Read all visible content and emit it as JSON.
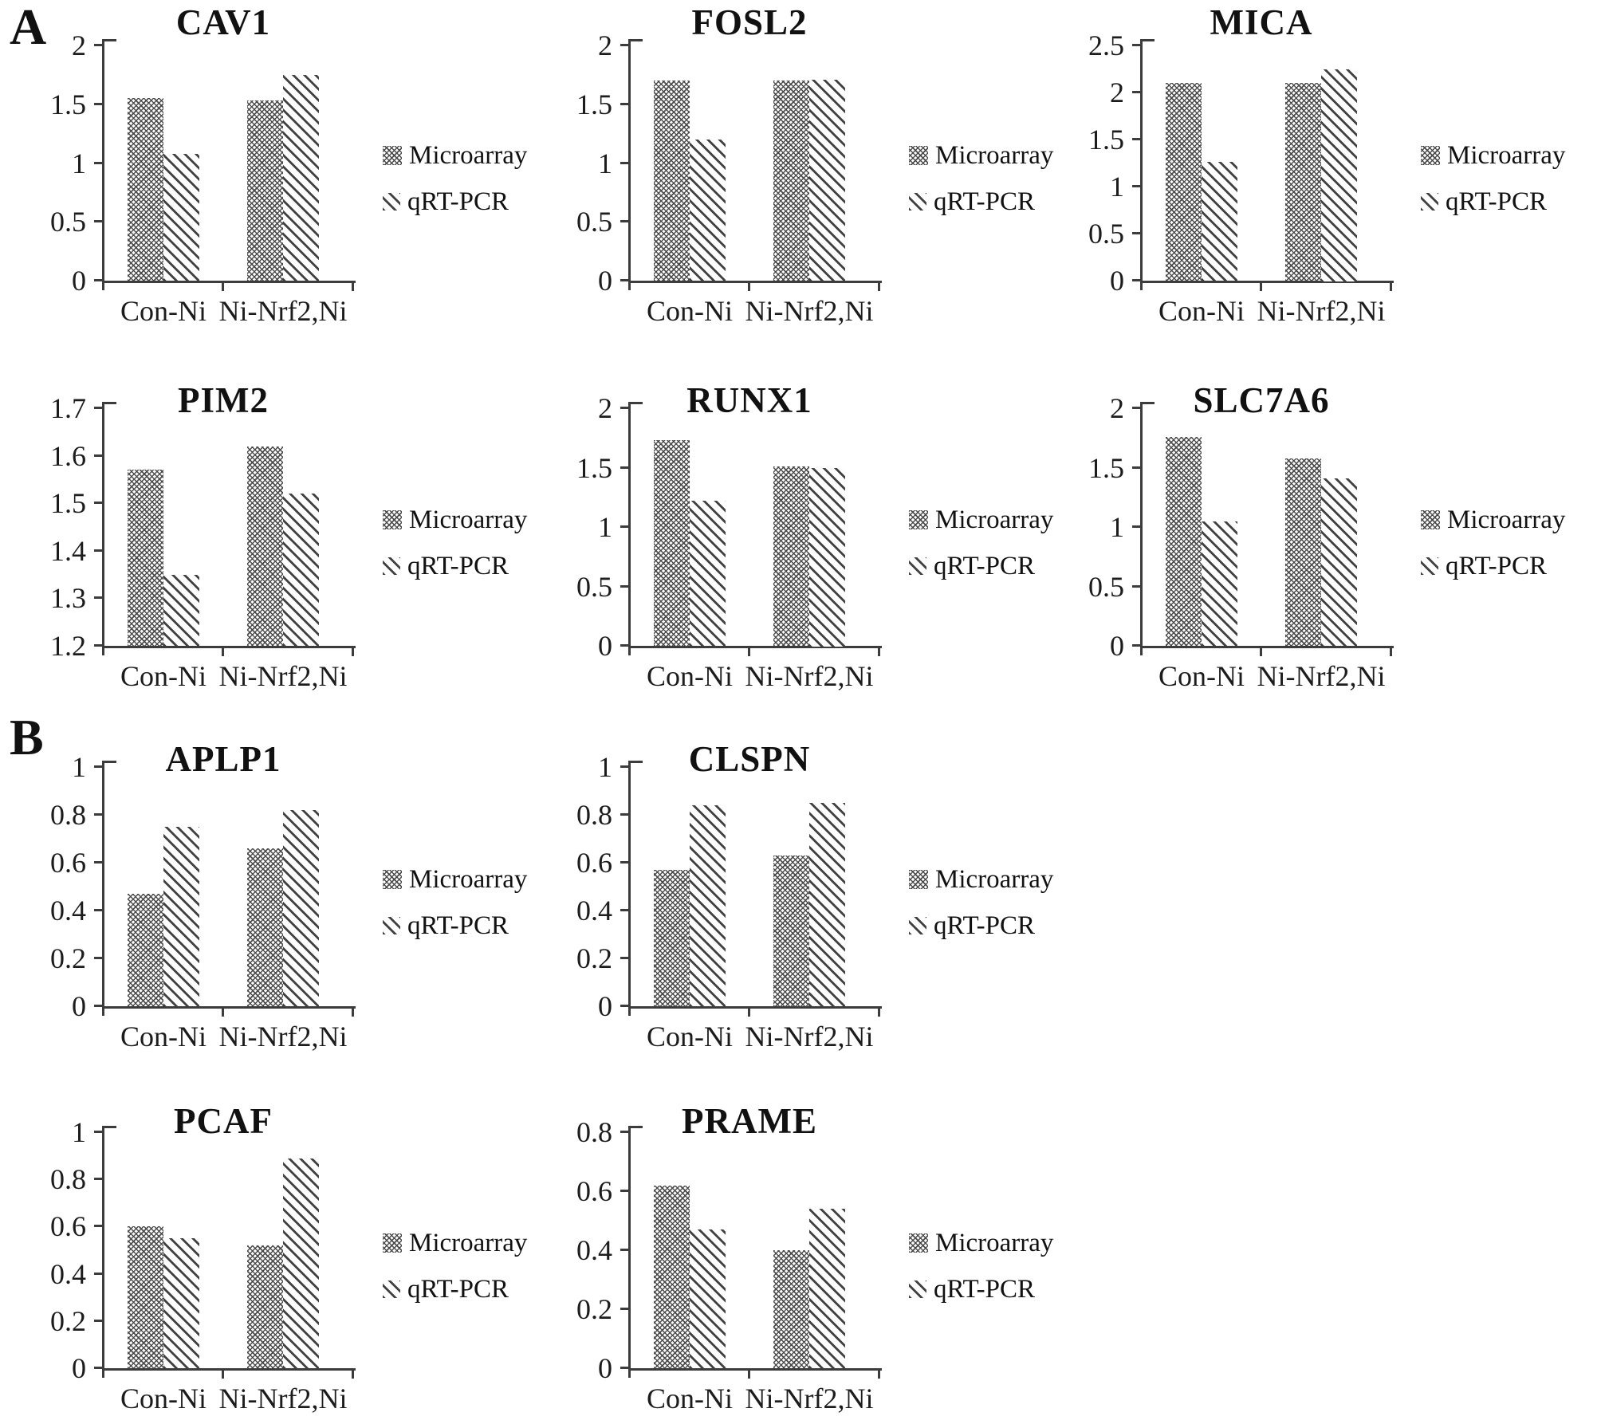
{
  "figure": {
    "background": "#ffffff",
    "text_color": "#161616",
    "axis_color": "#3c3c3c",
    "bar_pattern_color": "#565656",
    "panels": [
      {
        "label": "A"
      },
      {
        "label": "B"
      }
    ],
    "series_names": [
      "Microarray",
      "qRT-PCR"
    ],
    "legend": {
      "items": [
        {
          "label": "Microarray",
          "icon": "crosshatch-swatch-icon"
        },
        {
          "label": "qRT-PCR",
          "icon": "diagonal-stripes-swatch-icon"
        }
      ]
    }
  },
  "chart_data": [
    {
      "type": "bar",
      "panel": "A",
      "title": "CAV1",
      "ylim": [
        0,
        2
      ],
      "yticks": [
        "0",
        "0.5",
        "1",
        "1.5",
        "2"
      ],
      "categories": [
        "Con-Ni",
        "Ni-Nrf2,Ni"
      ],
      "legend_position": "right",
      "grid": false,
      "series": [
        {
          "name": "Microarray",
          "values": [
            1.55,
            1.53
          ]
        },
        {
          "name": "qRT-PCR",
          "values": [
            1.08,
            1.75
          ]
        }
      ]
    },
    {
      "type": "bar",
      "panel": "A",
      "title": "FOSL2",
      "ylim": [
        0,
        2
      ],
      "yticks": [
        "0",
        "0.5",
        "1",
        "1.5",
        "2"
      ],
      "categories": [
        "Con-Ni",
        "Ni-Nrf2,Ni"
      ],
      "legend_position": "right",
      "grid": false,
      "series": [
        {
          "name": "Microarray",
          "values": [
            1.7,
            1.7
          ]
        },
        {
          "name": "qRT-PCR",
          "values": [
            1.2,
            1.71
          ]
        }
      ]
    },
    {
      "type": "bar",
      "panel": "A",
      "title": "MICA",
      "ylim": [
        0,
        2.5
      ],
      "yticks": [
        "0",
        "0.5",
        "1",
        "1.5",
        "2",
        "2.5"
      ],
      "categories": [
        "Con-Ni",
        "Ni-Nrf2,Ni"
      ],
      "legend_position": "right",
      "grid": false,
      "series": [
        {
          "name": "Microarray",
          "values": [
            2.1,
            2.1
          ]
        },
        {
          "name": "qRT-PCR",
          "values": [
            1.26,
            2.25
          ]
        }
      ]
    },
    {
      "type": "bar",
      "panel": "A",
      "title": "PIM2",
      "ylim": [
        1.2,
        1.7
      ],
      "yticks": [
        "1.2",
        "1.3",
        "1.4",
        "1.5",
        "1.6",
        "1.7"
      ],
      "categories": [
        "Con-Ni",
        "Ni-Nrf2,Ni"
      ],
      "legend_position": "right",
      "grid": false,
      "series": [
        {
          "name": "Microarray",
          "values": [
            1.57,
            1.62
          ]
        },
        {
          "name": "qRT-PCR",
          "values": [
            1.35,
            1.52
          ]
        }
      ]
    },
    {
      "type": "bar",
      "panel": "A",
      "title": "RUNX1",
      "ylim": [
        0,
        2
      ],
      "yticks": [
        "0",
        "0.5",
        "1",
        "1.5",
        "2"
      ],
      "categories": [
        "Con-Ni",
        "Ni-Nrf2,Ni"
      ],
      "legend_position": "right",
      "grid": false,
      "series": [
        {
          "name": "Microarray",
          "values": [
            1.73,
            1.51
          ]
        },
        {
          "name": "qRT-PCR",
          "values": [
            1.22,
            1.5
          ]
        }
      ]
    },
    {
      "type": "bar",
      "panel": "A",
      "title": "SLC7A6",
      "ylim": [
        0,
        2
      ],
      "yticks": [
        "0",
        "0.5",
        "1",
        "1.5",
        "2"
      ],
      "categories": [
        "Con-Ni",
        "Ni-Nrf2,Ni"
      ],
      "legend_position": "right",
      "grid": false,
      "series": [
        {
          "name": "Microarray",
          "values": [
            1.76,
            1.58
          ]
        },
        {
          "name": "qRT-PCR",
          "values": [
            1.05,
            1.41
          ]
        }
      ]
    },
    {
      "type": "bar",
      "panel": "B",
      "title": "APLP1",
      "ylim": [
        0,
        1
      ],
      "yticks": [
        "0",
        "0.2",
        "0.4",
        "0.6",
        "0.8",
        "1"
      ],
      "categories": [
        "Con-Ni",
        "Ni-Nrf2,Ni"
      ],
      "legend_position": "right",
      "grid": false,
      "series": [
        {
          "name": "Microarray",
          "values": [
            0.47,
            0.66
          ]
        },
        {
          "name": "qRT-PCR",
          "values": [
            0.75,
            0.82
          ]
        }
      ]
    },
    {
      "type": "bar",
      "panel": "B",
      "title": "CLSPN",
      "ylim": [
        0,
        1
      ],
      "yticks": [
        "0",
        "0.2",
        "0.4",
        "0.6",
        "0.8",
        "1"
      ],
      "categories": [
        "Con-Ni",
        "Ni-Nrf2,Ni"
      ],
      "legend_position": "right",
      "grid": false,
      "series": [
        {
          "name": "Microarray",
          "values": [
            0.57,
            0.63
          ]
        },
        {
          "name": "qRT-PCR",
          "values": [
            0.84,
            0.85
          ]
        }
      ]
    },
    {
      "type": "bar",
      "panel": "B",
      "title": "PCAF",
      "ylim": [
        0,
        1
      ],
      "yticks": [
        "0",
        "0.2",
        "0.4",
        "0.6",
        "0.8",
        "1"
      ],
      "categories": [
        "Con-Ni",
        "Ni-Nrf2,Ni"
      ],
      "legend_position": "right",
      "grid": false,
      "series": [
        {
          "name": "Microarray",
          "values": [
            0.6,
            0.52
          ]
        },
        {
          "name": "qRT-PCR",
          "values": [
            0.55,
            0.89
          ]
        }
      ]
    },
    {
      "type": "bar",
      "panel": "B",
      "title": "PRAME",
      "ylim": [
        0,
        0.8
      ],
      "yticks": [
        "0",
        "0.2",
        "0.4",
        "0.6",
        "0.8"
      ],
      "categories": [
        "Con-Ni",
        "Ni-Nrf2,Ni"
      ],
      "legend_position": "right",
      "grid": false,
      "series": [
        {
          "name": "Microarray",
          "values": [
            0.62,
            0.4
          ]
        },
        {
          "name": "qRT-PCR",
          "values": [
            0.47,
            0.54
          ]
        }
      ]
    }
  ]
}
